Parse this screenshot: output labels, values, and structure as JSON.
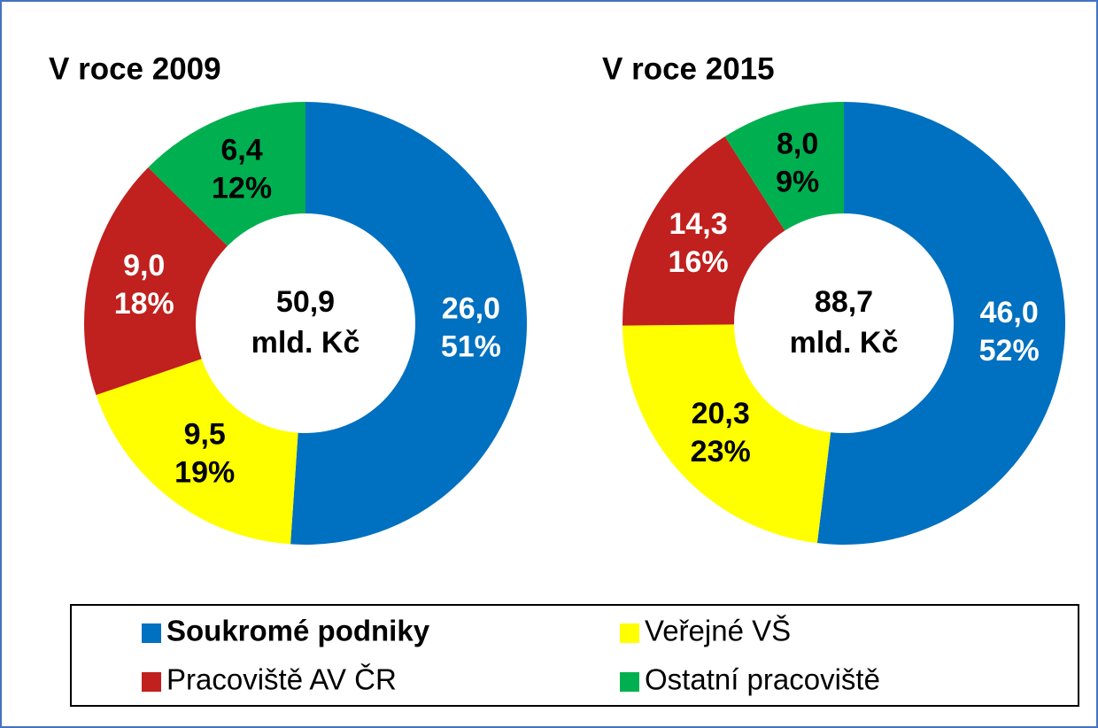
{
  "chart_data": [
    {
      "type": "donut",
      "title": "V roce 2009",
      "categories": [
        "Soukromé podniky",
        "Veřejné VŠ",
        "Pracoviště AV ČR",
        "Ostatní pracoviště"
      ],
      "values": [
        26.0,
        9.5,
        9.0,
        6.4
      ],
      "value_labels": [
        "26,0",
        "9,5",
        "9,0",
        "6,4"
      ],
      "percent_labels": [
        "51%",
        "19%",
        "18%",
        "12%"
      ],
      "colors": [
        "#0070c0",
        "#ffff00",
        "#c0201e",
        "#00b050"
      ],
      "label_colors": [
        "#ffffff",
        "#000000",
        "#ffffff",
        "#000000"
      ],
      "total_label": "50,9",
      "unit": "mld. Kč"
    },
    {
      "type": "donut",
      "title": "V roce 2015",
      "categories": [
        "Soukromé podniky",
        "Veřejné VŠ",
        "Pracoviště AV ČR",
        "Ostatní pracoviště"
      ],
      "values": [
        46.0,
        20.3,
        14.3,
        8.0
      ],
      "value_labels": [
        "46,0",
        "20,3",
        "14,3",
        "8,0"
      ],
      "percent_labels": [
        "52%",
        "23%",
        "16%",
        "9%"
      ],
      "colors": [
        "#0070c0",
        "#ffff00",
        "#c0201e",
        "#00b050"
      ],
      "label_colors": [
        "#ffffff",
        "#000000",
        "#ffffff",
        "#000000"
      ],
      "total_label": "88,7",
      "unit": "mld. Kč"
    }
  ]
}
